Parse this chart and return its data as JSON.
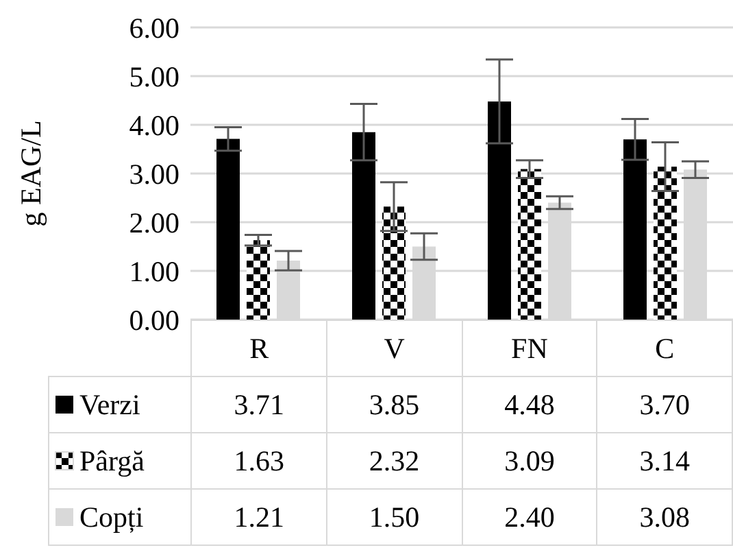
{
  "chart_data": {
    "type": "bar",
    "ylabel": "g EAG/L",
    "categories": [
      "R",
      "V",
      "FN",
      "C"
    ],
    "series": [
      {
        "name": "Verzi",
        "color": "#000000",
        "values": [
          3.71,
          3.85,
          4.48,
          3.7
        ],
        "value_labels": [
          "3.71",
          "3.85",
          "4.48",
          "3.70"
        ],
        "errors": [
          0.24,
          0.58,
          0.86,
          0.42
        ]
      },
      {
        "name": "Pârgă",
        "color": "#000000",
        "values": [
          1.63,
          2.32,
          3.09,
          3.14
        ],
        "value_labels": [
          "1.63",
          "2.32",
          "3.09",
          "3.14"
        ],
        "errors": [
          0.11,
          0.5,
          0.18,
          0.5
        ]
      },
      {
        "name": "Copți",
        "color": "#d9d9d9",
        "values": [
          1.21,
          1.5,
          2.4,
          3.08
        ],
        "value_labels": [
          "1.21",
          "1.50",
          "2.40",
          "3.08"
        ],
        "errors": [
          0.2,
          0.27,
          0.13,
          0.17
        ]
      }
    ],
    "ylim": [
      0,
      6
    ],
    "yticks": [
      {
        "value": 0,
        "label": "0.00"
      },
      {
        "value": 1,
        "label": "1.00"
      },
      {
        "value": 2,
        "label": "2.00"
      },
      {
        "value": 3,
        "label": "3.00"
      },
      {
        "value": 4,
        "label": "4.00"
      },
      {
        "value": 5,
        "label": "5.00"
      },
      {
        "value": 6,
        "label": "6.00"
      }
    ],
    "grid": "y",
    "legend": "bottom"
  }
}
